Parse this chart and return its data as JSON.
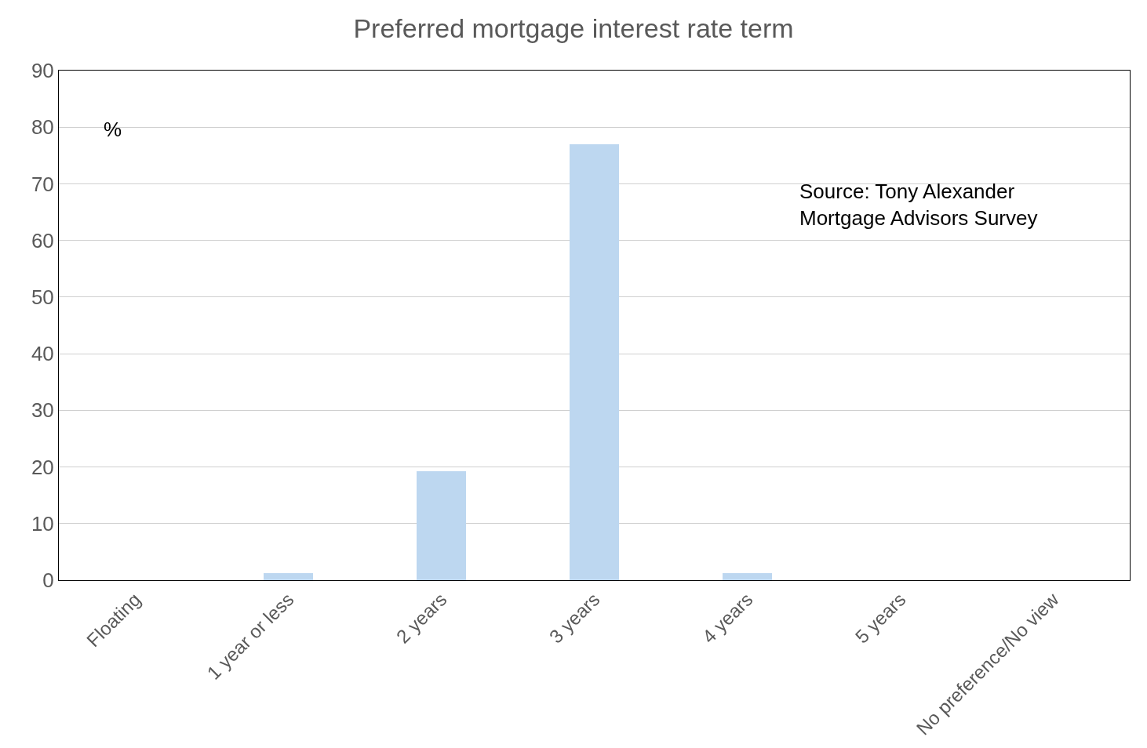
{
  "chart_data": {
    "type": "bar",
    "title": "Preferred mortgage interest rate term",
    "categories": [
      "Floating",
      "1 year or less",
      "2 years",
      "3 years",
      "4 years",
      "5 years",
      "No preference/No view"
    ],
    "values": [
      0,
      1.3,
      19.2,
      77.0,
      1.3,
      0,
      0
    ],
    "color": "#bdd7f0",
    "ylim": [
      0,
      90
    ],
    "yticks": [
      0,
      10,
      20,
      30,
      40,
      50,
      60,
      70,
      80,
      90
    ],
    "grid": "y",
    "annotations": [
      "%",
      "Source: Tony Alexander Mortgage Advisors Survey"
    ]
  }
}
